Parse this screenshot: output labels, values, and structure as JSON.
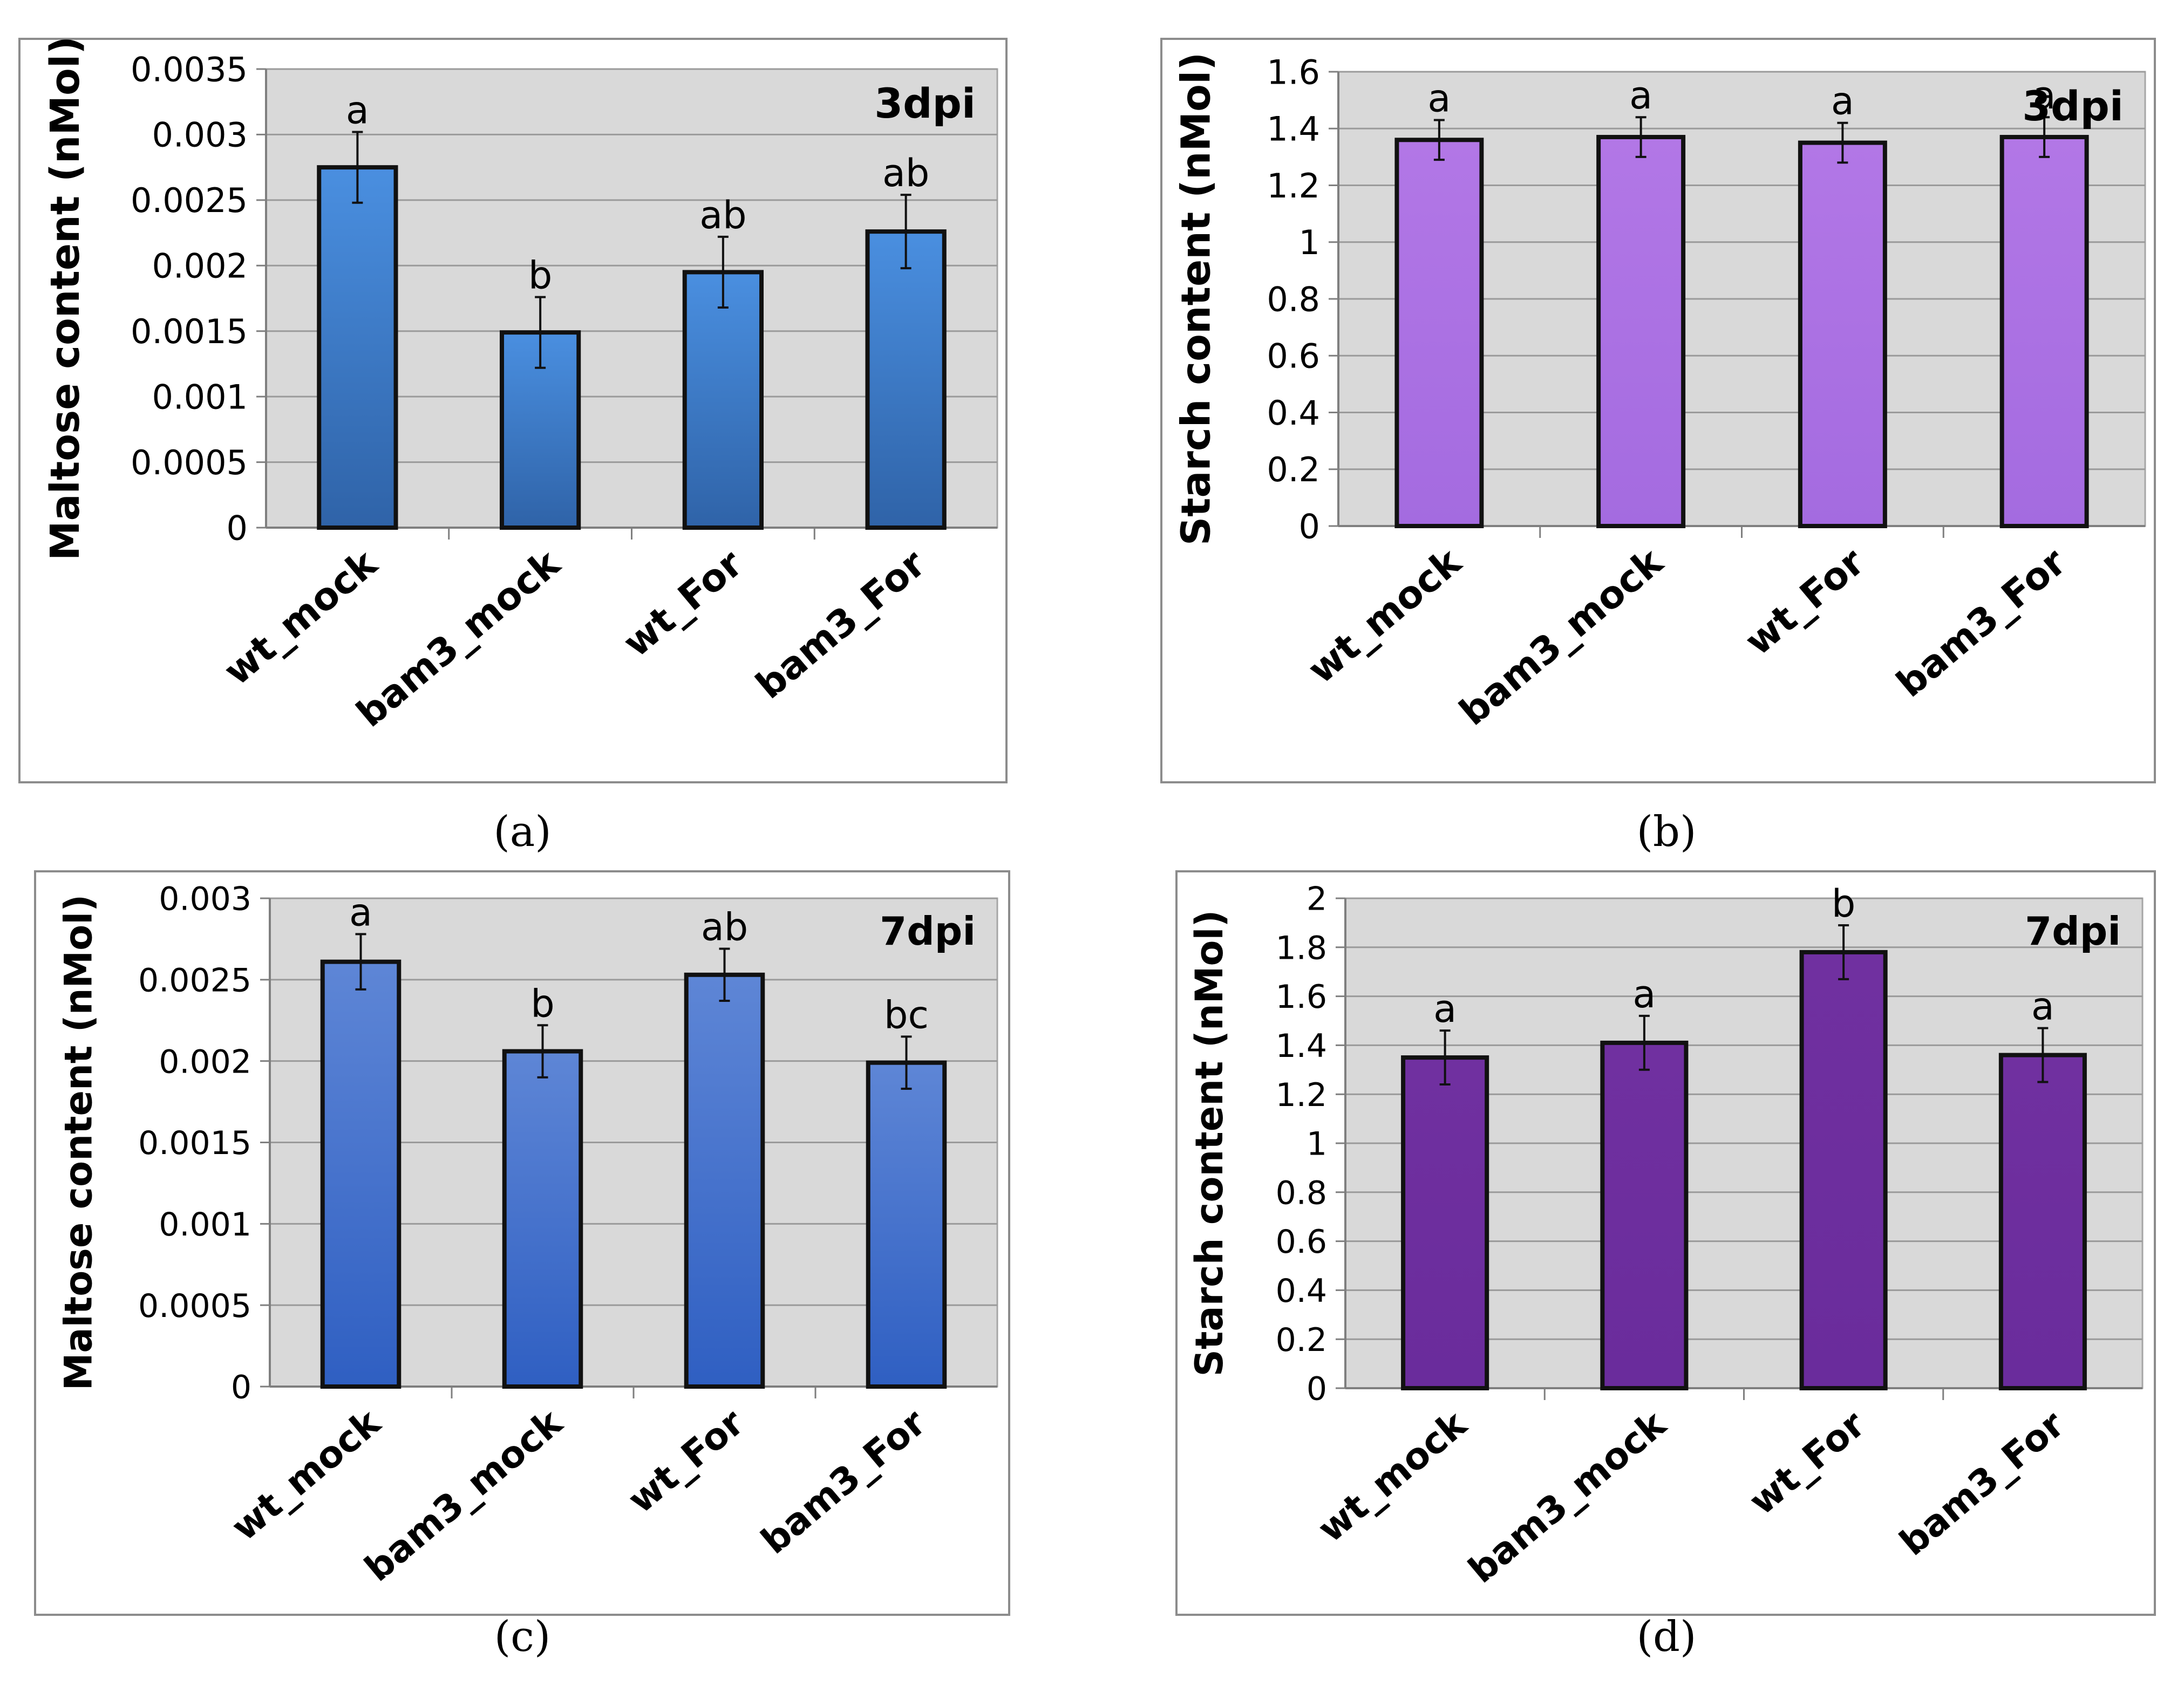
{
  "chart_data": [
    {
      "type": "bar",
      "panel_label": "(a)",
      "tag": "3dpi",
      "ylabel": "Maltose content (nMol)",
      "categories": [
        "wt_mock",
        "bam3_mock",
        "wt_For",
        "bam3_For"
      ],
      "values": [
        0.00275,
        0.00149,
        0.00195,
        0.00226
      ],
      "errors": [
        0.00027,
        0.00027,
        0.00027,
        0.00028
      ],
      "significance": [
        "a",
        "b",
        "ab",
        "ab"
      ],
      "ylim": [
        0,
        0.0035
      ],
      "yticks": [
        0,
        0.0005,
        0.001,
        0.0015,
        0.002,
        0.0025,
        0.003,
        0.0035
      ],
      "ytick_labels": [
        "0",
        "0.0005",
        "0.001",
        "0.0015",
        "0.002",
        "0.0025",
        "0.003",
        "0.0035"
      ],
      "grid": true,
      "colors": {
        "bar_top": "#4a8fe0",
        "bar_bottom": "#2f63a8",
        "plot_bg": "#d9d9d9",
        "grid": "#9a9a9a"
      }
    },
    {
      "type": "bar",
      "panel_label": "(b)",
      "tag": "3dpi",
      "ylabel": "Starch content (nMol)",
      "categories": [
        "wt_mock",
        "bam3_mock",
        "wt_For",
        "bam3_For"
      ],
      "values": [
        1.36,
        1.37,
        1.35,
        1.37
      ],
      "errors": [
        0.07,
        0.07,
        0.07,
        0.07
      ],
      "significance": [
        "a",
        "a",
        "a",
        "a"
      ],
      "ylim": [
        0,
        1.6
      ],
      "yticks": [
        0,
        0.2,
        0.4,
        0.6,
        0.8,
        1,
        1.2,
        1.4,
        1.6
      ],
      "ytick_labels": [
        "0",
        "0.2",
        "0.4",
        "0.6",
        "0.8",
        "1",
        "1.2",
        "1.4",
        "1.6"
      ],
      "grid": true,
      "colors": {
        "bar_top": "#b277e6",
        "bar_bottom": "#a46be0",
        "plot_bg": "#d9d9d9",
        "grid": "#9a9a9a"
      }
    },
    {
      "type": "bar",
      "panel_label": "(c)",
      "tag": "7dpi",
      "ylabel": "Maltose content (nMol)",
      "categories": [
        "wt_mock",
        "bam3_mock",
        "wt_For",
        "bam3_For"
      ],
      "values": [
        0.00261,
        0.00206,
        0.00253,
        0.00199
      ],
      "errors": [
        0.00017,
        0.00016,
        0.00016,
        0.00016
      ],
      "significance": [
        "a",
        "b",
        "ab",
        "bc"
      ],
      "ylim": [
        0,
        0.003
      ],
      "yticks": [
        0,
        0.0005,
        0.001,
        0.0015,
        0.002,
        0.0025,
        0.003
      ],
      "ytick_labels": [
        "0",
        "0.0005",
        "0.001",
        "0.0015",
        "0.002",
        "0.0025",
        "0.003"
      ],
      "grid": true,
      "colors": {
        "bar_top": "#5e86d6",
        "bar_bottom": "#2f5fc2",
        "plot_bg": "#d9d9d9",
        "grid": "#9a9a9a"
      }
    },
    {
      "type": "bar",
      "panel_label": "(d)",
      "tag": "7dpi",
      "ylabel": "Starch content (nMol)",
      "categories": [
        "wt_mock",
        "bam3_mock",
        "wt_For",
        "bam3_For"
      ],
      "values": [
        1.35,
        1.41,
        1.78,
        1.36
      ],
      "errors": [
        0.11,
        0.11,
        0.11,
        0.11
      ],
      "significance": [
        "a",
        "a",
        "b",
        "a"
      ],
      "ylim": [
        0,
        2
      ],
      "yticks": [
        0,
        0.2,
        0.4,
        0.6,
        0.8,
        1,
        1.2,
        1.4,
        1.6,
        1.8,
        2
      ],
      "ytick_labels": [
        "0",
        "0.2",
        "0.4",
        "0.6",
        "0.8",
        "1",
        "1.2",
        "1.4",
        "1.6",
        "1.8",
        "2"
      ],
      "grid": true,
      "colors": {
        "bar_top": "#7030a0",
        "bar_bottom": "#6a2c9c",
        "plot_bg": "#d9d9d9",
        "grid": "#9a9a9a"
      }
    }
  ]
}
